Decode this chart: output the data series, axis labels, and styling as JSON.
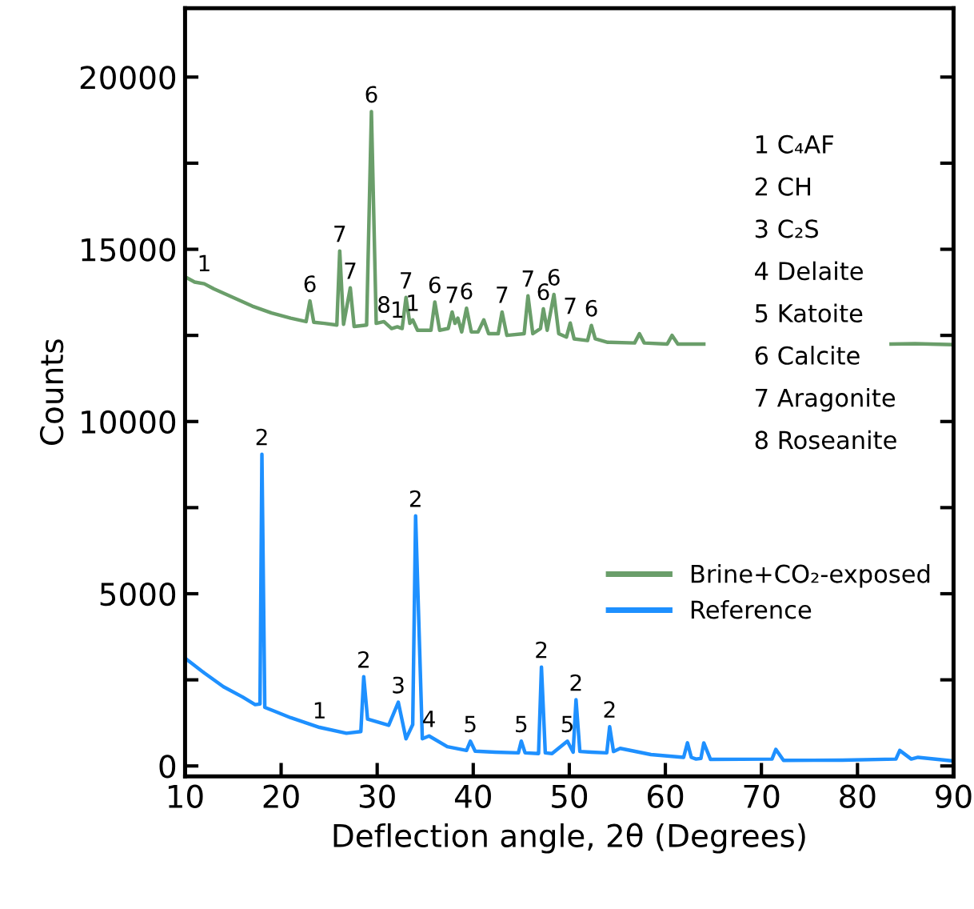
{
  "chart_data": {
    "type": "line",
    "xlabel": "Deflection angle, 2θ (Degrees)",
    "ylabel": "Counts",
    "xlim": [
      10,
      90
    ],
    "xticks": [
      10,
      20,
      30,
      40,
      50,
      60,
      70,
      80,
      90
    ],
    "ylim": [
      -300,
      22000
    ],
    "yticks": [
      0,
      {
        "value": 2500,
        "label": null
      },
      5000,
      {
        "value": 7500,
        "label": null
      },
      10000,
      {
        "value": 12500,
        "label": null
      },
      15000,
      {
        "value": 17500,
        "label": null
      },
      20000
    ],
    "grid": false,
    "legend": "lower right",
    "marker": "none",
    "line_style": "solid",
    "series": [
      {
        "name": "Brine+CO₂-exposed",
        "color": "#6a9e6a",
        "x": [
          10,
          11,
          12,
          13,
          15,
          17,
          19,
          21,
          22.6,
          23.0,
          23.4,
          24.5,
          25.8,
          26.1,
          26.5,
          27.2,
          27.6,
          28.9,
          29.4,
          29.9,
          30.7,
          31.5,
          32.1,
          32.6,
          33.0,
          33.4,
          33.7,
          34.2,
          35.6,
          36.0,
          36.5,
          37.4,
          37.8,
          38.1,
          38.4,
          38.8,
          39.3,
          39.8,
          40.5,
          41.1,
          41.6,
          42.6,
          43.0,
          43.5,
          45.3,
          45.7,
          46.2,
          47.0,
          47.3,
          47.7,
          48.4,
          48.9,
          49.7,
          50.1,
          50.5,
          51.9,
          52.3,
          52.7,
          54,
          56.8,
          57.3,
          57.8,
          60.2,
          60.7,
          61.3,
          64,
          70,
          83.5,
          86,
          90
        ],
        "values": [
          14200,
          14050,
          14000,
          13850,
          13600,
          13350,
          13150,
          13000,
          12900,
          13500,
          12880,
          12850,
          12800,
          14950,
          12820,
          13880,
          12760,
          12800,
          19000,
          12850,
          12900,
          12700,
          12750,
          12700,
          13600,
          12850,
          12950,
          12650,
          12650,
          13470,
          12650,
          12700,
          13180,
          12850,
          13000,
          12600,
          13290,
          12600,
          12600,
          12950,
          12550,
          12550,
          13180,
          12500,
          12550,
          13650,
          12550,
          12700,
          13270,
          12650,
          13690,
          12550,
          12450,
          12860,
          12400,
          12350,
          12790,
          12400,
          12300,
          12280,
          12550,
          12280,
          12250,
          12500,
          12250,
          12250,
          null,
          12250,
          12260,
          12230
        ]
      },
      {
        "name": "Reference",
        "color": "#1e90ff",
        "x": [
          10,
          12,
          14,
          16,
          17.3,
          17.8,
          18.0,
          18.3,
          19.3,
          21,
          24,
          26.8,
          28.3,
          28.6,
          29.0,
          31.2,
          32.2,
          33.0,
          33.7,
          34.0,
          34.7,
          35.4,
          37.3,
          39.3,
          39.7,
          40.2,
          42.3,
          44.7,
          45.0,
          45.4,
          46.8,
          47.1,
          47.5,
          48.2,
          49.8,
          50.4,
          50.7,
          51.1,
          52.3,
          53.9,
          54.2,
          54.6,
          55.3,
          58.5,
          61.9,
          62.3,
          62.7,
          63.2,
          63.7,
          64.0,
          64.7,
          71.1,
          71.5,
          72.3,
          78.4,
          84.0,
          84.4,
          85.6,
          86.3,
          89.8
        ],
        "values": [
          3130,
          2700,
          2300,
          2000,
          1780,
          1800,
          9050,
          1700,
          1590,
          1400,
          1120,
          950,
          1000,
          2590,
          1360,
          1180,
          1850,
          790,
          1200,
          7260,
          790,
          870,
          560,
          450,
          720,
          430,
          400,
          380,
          720,
          380,
          360,
          2870,
          380,
          360,
          720,
          400,
          1920,
          420,
          400,
          380,
          1140,
          420,
          510,
          330,
          250,
          670,
          250,
          200,
          220,
          670,
          190,
          200,
          480,
          160,
          170,
          200,
          450,
          200,
          250,
          150
        ]
      }
    ],
    "annotations": [
      {
        "text": "1",
        "x": 12.0,
        "y": 14100
      },
      {
        "text": "6",
        "x": 23.0,
        "y": 13500
      },
      {
        "text": "7",
        "x": 26.1,
        "y": 14950
      },
      {
        "text": "7",
        "x": 27.2,
        "y": 13880
      },
      {
        "text": "6",
        "x": 29.4,
        "y": 19000
      },
      {
        "text": "8",
        "x": 30.7,
        "y": 12900
      },
      {
        "text": "1",
        "x": 32.1,
        "y": 12750
      },
      {
        "text": "7",
        "x": 33.0,
        "y": 13600
      },
      {
        "text": "1",
        "x": 33.7,
        "y": 12950
      },
      {
        "text": "6",
        "x": 36.0,
        "y": 13470
      },
      {
        "text": "7",
        "x": 37.8,
        "y": 13180
      },
      {
        "text": "6",
        "x": 39.3,
        "y": 13290
      },
      {
        "text": "7",
        "x": 43.0,
        "y": 13180
      },
      {
        "text": "7",
        "x": 45.7,
        "y": 13650
      },
      {
        "text": "6",
        "x": 47.3,
        "y": 13270
      },
      {
        "text": "6",
        "x": 48.4,
        "y": 13690
      },
      {
        "text": "7",
        "x": 50.1,
        "y": 12860
      },
      {
        "text": "6",
        "x": 52.3,
        "y": 12790
      },
      {
        "text": "2",
        "x": 18.0,
        "y": 9050
      },
      {
        "text": "1",
        "x": 24.0,
        "y": 1120
      },
      {
        "text": "2",
        "x": 28.6,
        "y": 2590
      },
      {
        "text": "3",
        "x": 32.2,
        "y": 1850
      },
      {
        "text": "2",
        "x": 34.0,
        "y": 7260
      },
      {
        "text": "4",
        "x": 35.4,
        "y": 870
      },
      {
        "text": "5",
        "x": 39.7,
        "y": 720
      },
      {
        "text": "5",
        "x": 45.0,
        "y": 720
      },
      {
        "text": "2",
        "x": 47.1,
        "y": 2870
      },
      {
        "text": "5",
        "x": 49.8,
        "y": 720
      },
      {
        "text": "2",
        "x": 50.7,
        "y": 1920
      },
      {
        "text": "2",
        "x": 54.2,
        "y": 1140
      },
      "1 C₄AF",
      "2 CH",
      "3 C₂S",
      "4 Delaite",
      "5 Katoite",
      "6 Calcite",
      "7 Aragonite",
      "8 Roseanite"
    ]
  }
}
